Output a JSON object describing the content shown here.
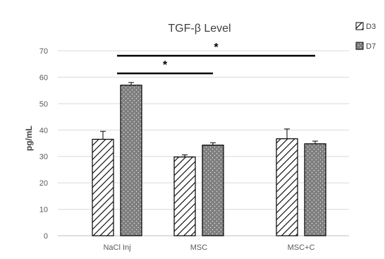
{
  "chart_data": {
    "type": "bar",
    "title": "TGF-β Level",
    "xlabel": "",
    "ylabel": "pg/mL",
    "ylim": [
      0,
      70
    ],
    "yticks": [
      0,
      10,
      20,
      30,
      40,
      50,
      60,
      70
    ],
    "categories": [
      "NaCl Inj",
      "MSC",
      "MSC+C"
    ],
    "series": [
      {
        "name": "D3",
        "values": [
          36.5,
          29.8,
          36.7
        ],
        "errors": [
          3.0,
          0.8,
          3.7
        ],
        "pattern": "diagonal-hatch"
      },
      {
        "name": "D7",
        "values": [
          57.0,
          34.3,
          34.8
        ],
        "errors": [
          1.0,
          0.9,
          1.0
        ],
        "pattern": "dotted-gray"
      }
    ],
    "significance": [
      {
        "from_category": 0,
        "to_category": 1,
        "label": "*"
      },
      {
        "from_category": 0,
        "to_category": 2,
        "label": "*"
      }
    ],
    "grid": true,
    "legend": "top-right",
    "colors": {
      "d7_fill": "#7f7f7f",
      "d3_fill": "#ffffff",
      "gridline": "#d9d9d9",
      "bar_edge": "#000000"
    }
  }
}
